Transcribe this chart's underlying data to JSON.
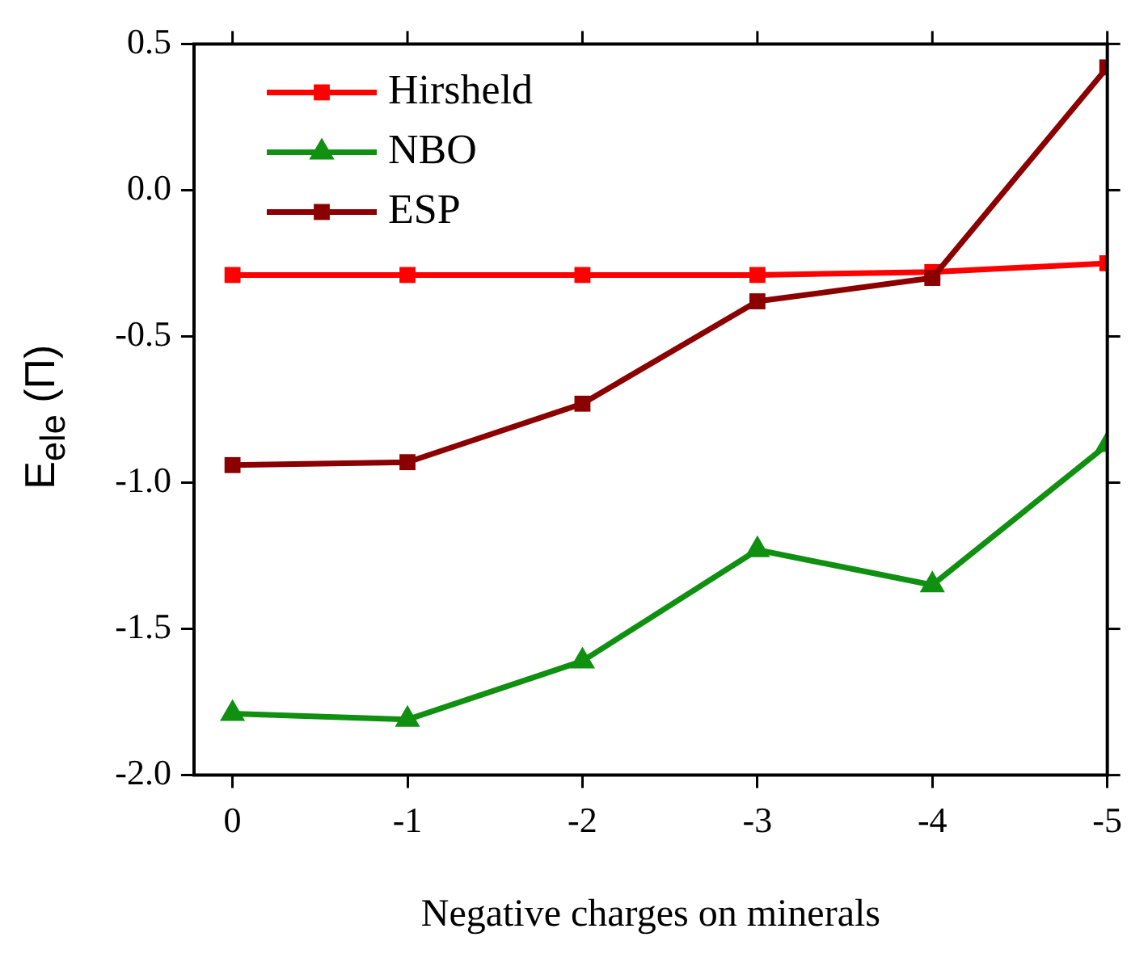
{
  "chart_data": {
    "type": "line",
    "xlabel": "Negative charges on minerals",
    "ylabel": "E$_{ele}$ (Π)",
    "x": [
      0,
      -1,
      -2,
      -3,
      -4,
      -5
    ],
    "xlim": [
      0.22,
      -5
    ],
    "xticks": [
      0,
      -1,
      -2,
      -3,
      -4,
      -5
    ],
    "ylim": [
      -2.0,
      0.5
    ],
    "yticks": [
      {
        "value": -2,
        "label": "-2.0"
      },
      {
        "value": -1.5,
        "label": "-1.5"
      },
      {
        "value": -1,
        "label": "-1.0"
      },
      {
        "value": -0.5,
        "label": "-0.5"
      },
      {
        "value": 0,
        "label": "0.0"
      },
      {
        "value": 0.5,
        "label": "0.5"
      }
    ],
    "grid": false,
    "legend": "top left",
    "series": [
      {
        "name": "Hirsheld",
        "color": "#ff0000",
        "marker": "square",
        "values": [
          -0.29,
          -0.29,
          -0.29,
          -0.29,
          -0.28,
          -0.25
        ]
      },
      {
        "name": "NBO",
        "color": "#109010",
        "marker": "triangle",
        "values": [
          -1.79,
          -1.81,
          -1.61,
          -1.23,
          -1.35,
          -0.87
        ]
      },
      {
        "name": "ESP",
        "color": "#8b0000",
        "marker": "square",
        "values": [
          -0.94,
          -0.93,
          -0.73,
          -0.38,
          -0.3,
          0.42
        ]
      }
    ]
  }
}
